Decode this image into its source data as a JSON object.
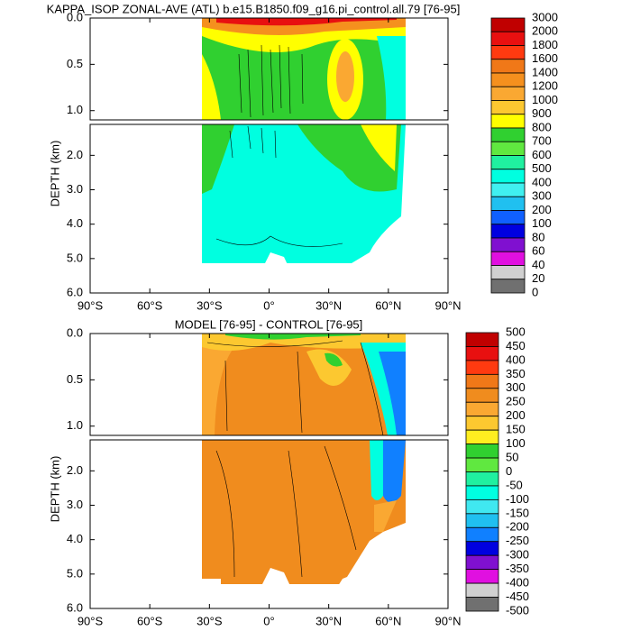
{
  "charts": [
    {
      "type": "contour",
      "title": "KAPPA_ISOP ZONAL-AVE (ATL) b.e15.B1850.f09_g16.pi_control.all.79 [76-95]",
      "ylabel": "DEPTH (km)",
      "xlim": [
        -90,
        90
      ],
      "ylim": [
        0,
        6
      ],
      "axis_break": 1.1,
      "xticks": [
        {
          "value": -90,
          "label": "90°S"
        },
        {
          "value": -60,
          "label": "60°S"
        },
        {
          "value": -30,
          "label": "30°S"
        },
        {
          "value": 0,
          "label": "0°"
        },
        {
          "value": 30,
          "label": "30°N"
        },
        {
          "value": 60,
          "label": "60°N"
        },
        {
          "value": 90,
          "label": "90°N"
        }
      ],
      "yticks": [
        {
          "value": 0,
          "label": "0.0"
        },
        {
          "value": 0.5,
          "label": "0.5"
        },
        {
          "value": 1,
          "label": "1.0"
        },
        {
          "value": 2,
          "label": "2.0"
        },
        {
          "value": 3,
          "label": "3.0"
        },
        {
          "value": 4,
          "label": "4.0"
        },
        {
          "value": 5,
          "label": "5.0"
        },
        {
          "value": 6,
          "label": "6.0"
        }
      ],
      "colorbar": {
        "levels": [
          3000,
          2000,
          1800,
          1600,
          1400,
          1200,
          1000,
          900,
          800,
          700,
          600,
          500,
          400,
          300,
          200,
          100,
          80,
          60,
          40,
          20,
          0
        ],
        "colors": [
          "#c00000",
          "#e81010",
          "#ff3a10",
          "#f07818",
          "#f5901e",
          "#faa832",
          "#fcc830",
          "#ffff00",
          "#30d030",
          "#60e840",
          "#20f0a0",
          "#00ffe0",
          "#40f0f0",
          "#20c0f0",
          "#1060ff",
          "#0000e0",
          "#8010d0",
          "#e010e0",
          "#d0d0d0",
          "#707070"
        ]
      }
    },
    {
      "type": "contour",
      "title": "MODEL [76-95] - CONTROL [76-95]",
      "ylabel": "DEPTH (km)",
      "xlim": [
        -90,
        90
      ],
      "ylim": [
        0,
        6
      ],
      "axis_break": 1.1,
      "xticks": [
        {
          "value": -90,
          "label": "90°S"
        },
        {
          "value": -60,
          "label": "60°S"
        },
        {
          "value": -30,
          "label": "30°S"
        },
        {
          "value": 0,
          "label": "0°"
        },
        {
          "value": 30,
          "label": "30°N"
        },
        {
          "value": 60,
          "label": "60°N"
        },
        {
          "value": 90,
          "label": "90°N"
        }
      ],
      "yticks": [
        {
          "value": 0,
          "label": "0.0"
        },
        {
          "value": 0.5,
          "label": "0.5"
        },
        {
          "value": 1,
          "label": "1.0"
        },
        {
          "value": 2,
          "label": "2.0"
        },
        {
          "value": 3,
          "label": "3.0"
        },
        {
          "value": 4,
          "label": "4.0"
        },
        {
          "value": 5,
          "label": "5.0"
        },
        {
          "value": 6,
          "label": "6.0"
        }
      ],
      "colorbar": {
        "levels": [
          500,
          450,
          400,
          350,
          300,
          250,
          200,
          150,
          100,
          50,
          0,
          -50,
          -100,
          -150,
          -200,
          -250,
          -300,
          -350,
          -400,
          -450,
          -500
        ],
        "colors": [
          "#c00000",
          "#e81010",
          "#ff3a10",
          "#f07818",
          "#f08c1e",
          "#faa832",
          "#fcc830",
          "#ffee20",
          "#30d030",
          "#60e840",
          "#20f0a0",
          "#00ffe0",
          "#40e8f0",
          "#20c0f0",
          "#1080ff",
          "#0000e0",
          "#8010d0",
          "#e010e0",
          "#d0d0d0",
          "#707070"
        ]
      }
    }
  ]
}
